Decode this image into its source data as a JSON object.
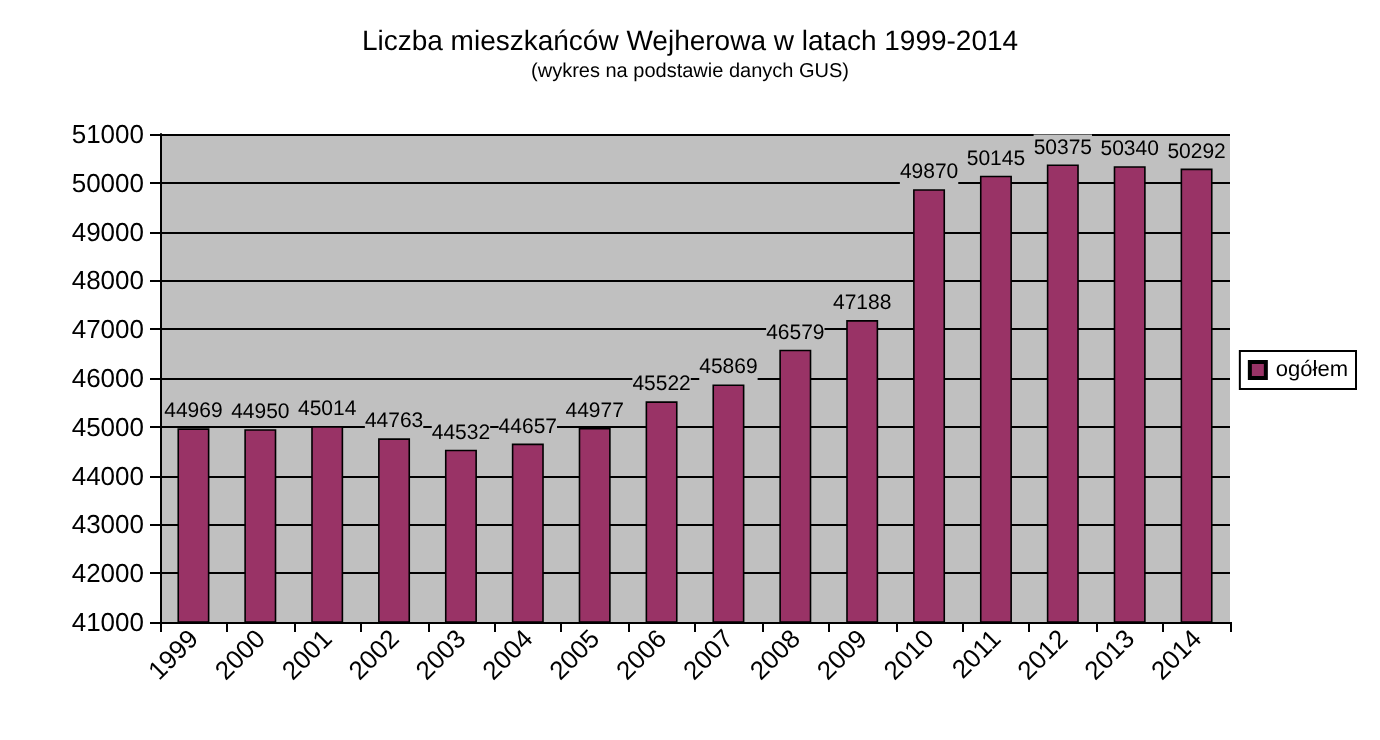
{
  "chart_data": {
    "type": "bar",
    "title": "Liczba mieszkańców Wejherowa w latach 1999-2014",
    "subtitle": "(wykres na podstawie danych GUS)",
    "categories": [
      "1999",
      "2000",
      "2001",
      "2002",
      "2003",
      "2004",
      "2005",
      "2006",
      "2007",
      "2008",
      "2009",
      "2010",
      "2011",
      "2012",
      "2013",
      "2014"
    ],
    "series": [
      {
        "name": "ogółem",
        "color": "#993366",
        "values": [
          44969,
          44950,
          45014,
          44763,
          44532,
          44657,
          44977,
          45522,
          45869,
          46579,
          47188,
          49870,
          50145,
          50375,
          50340,
          50292
        ]
      }
    ],
    "ylim": [
      41000,
      51000
    ],
    "yticks": [
      41000,
      42000,
      43000,
      44000,
      45000,
      46000,
      47000,
      48000,
      49000,
      50000,
      51000
    ],
    "grid": "y",
    "legend": "right",
    "data_labels": true
  }
}
